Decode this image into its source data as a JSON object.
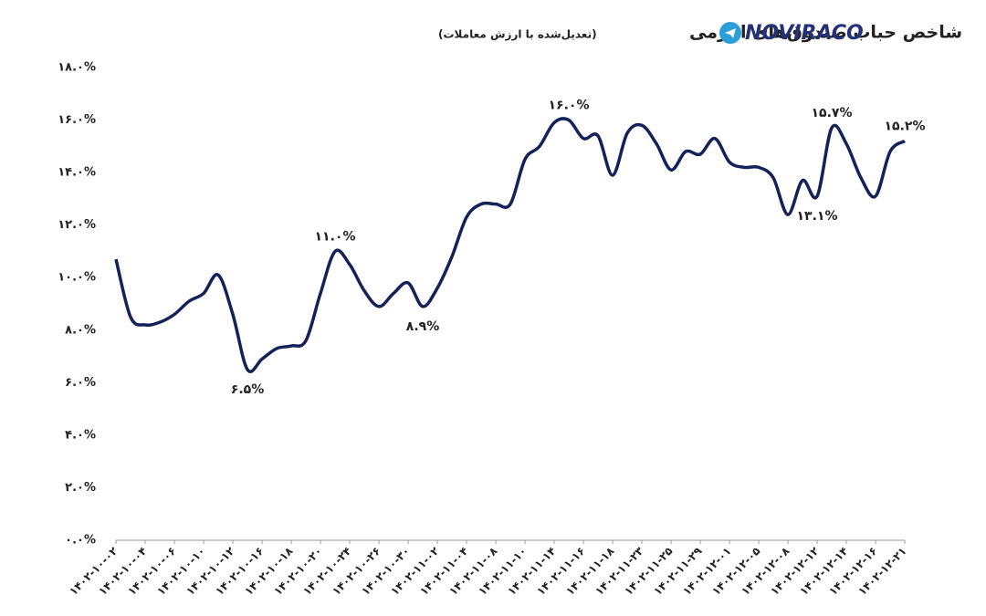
{
  "chart_data": {
    "type": "line",
    "title": "شاخص حباب صندوق‌های اهرمی",
    "subtitle": "(تعدیل‌شده با ارزش معاملات)",
    "brand": "NOVIRACO",
    "categories": [
      "۱۴۰۲-۱۰-۰۲",
      null,
      "۱۴۰۲-۱۰-۰۴",
      null,
      "۱۴۰۲-۱۰-۰۶",
      null,
      "۱۴۰۲-۱۰-۱۰",
      null,
      "۱۴۰۲-۱۰-۱۲",
      null,
      "۱۴۰۲-۱۰-۱۶",
      null,
      "۱۴۰۲-۱۰-۱۸",
      null,
      "۱۴۰۲-۱۰-۲۰",
      null,
      "۱۴۰۲-۱۰-۲۴",
      null,
      "۱۴۰۲-۱۰-۲۶",
      null,
      "۱۴۰۲-۱۰-۳۰",
      null,
      "۱۴۰۲-۱۱-۰۲",
      null,
      "۱۴۰۲-۱۱-۰۴",
      null,
      "۱۴۰۲-۱۱-۰۸",
      null,
      "۱۴۰۲-۱۱-۱۰",
      null,
      "۱۴۰۲-۱۱-۱۴",
      null,
      "۱۴۰۲-۱۱-۱۶",
      null,
      "۱۴۰۲-۱۱-۱۸",
      null,
      "۱۴۰۲-۱۱-۲۳",
      null,
      "۱۴۰۲-۱۱-۲۵",
      null,
      "۱۴۰۲-۱۱-۲۹",
      null,
      "۱۴۰۲-۱۲-۰۱",
      null,
      "۱۴۰۲-۱۲-۰۵",
      null,
      "۱۴۰۲-۱۲-۰۸",
      null,
      "۱۴۰۲-۱۲-۱۲",
      null,
      "۱۴۰۲-۱۲-۱۴",
      null,
      "۱۴۰۲-۱۲-۱۶",
      null,
      "۱۴۰۲-۱۲-۲۱"
    ],
    "series": [
      {
        "color": "#14225a",
        "values": [
          10.7,
          8.5,
          8.2,
          8.3,
          8.6,
          9.1,
          9.4,
          10.1,
          8.6,
          6.5,
          6.9,
          7.3,
          7.4,
          7.6,
          9.4,
          11.0,
          10.5,
          9.5,
          8.9,
          9.4,
          9.8,
          8.9,
          9.6,
          10.8,
          12.3,
          12.8,
          12.8,
          12.8,
          14.5,
          15.0,
          15.9,
          16.0,
          15.3,
          15.4,
          13.9,
          15.5,
          15.8,
          15.1,
          14.1,
          14.8,
          14.7,
          15.3,
          14.4,
          14.2,
          14.2,
          13.8,
          12.4,
          13.7,
          13.1,
          15.7,
          15.1,
          13.8,
          13.1,
          14.8,
          15.2
        ],
        "value_labels": [
          null,
          null,
          null,
          null,
          null,
          null,
          null,
          null,
          null,
          "۶.۵%",
          null,
          null,
          null,
          null,
          null,
          "۱۱.۰%",
          null,
          null,
          null,
          null,
          null,
          "۸.۹%",
          null,
          null,
          null,
          null,
          null,
          null,
          null,
          null,
          null,
          "۱۶.۰%",
          null,
          null,
          null,
          null,
          null,
          null,
          null,
          null,
          null,
          null,
          null,
          null,
          null,
          null,
          null,
          null,
          "۱۳.۱%",
          "۱۵.۷%",
          null,
          null,
          null,
          null,
          "۱۵.۲%"
        ]
      }
    ],
    "ylim": [
      0,
      18
    ],
    "yticks": [
      {
        "value": 0,
        "label": "۰.۰%"
      },
      {
        "value": 2,
        "label": "۲.۰%"
      },
      {
        "value": 4,
        "label": "۴.۰%"
      },
      {
        "value": 6,
        "label": "۶.۰%"
      },
      {
        "value": 8,
        "label": "۸.۰%"
      },
      {
        "value": 10,
        "label": "۱۰.۰%"
      },
      {
        "value": 12,
        "label": "۱۲.۰%"
      },
      {
        "value": 14,
        "label": "۱۴.۰%"
      },
      {
        "value": 16,
        "label": "۱۶.۰%"
      },
      {
        "value": 18,
        "label": "۱۸.۰%"
      }
    ]
  }
}
